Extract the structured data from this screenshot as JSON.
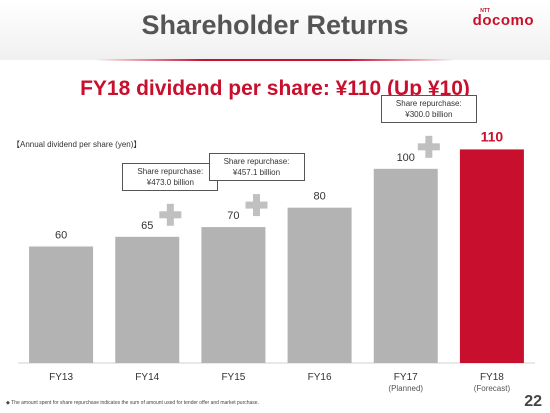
{
  "header": {
    "title": "Shareholder Returns",
    "logo_small": "NTT",
    "logo": "docomo",
    "page_number": "22"
  },
  "headline": "FY18 dividend per share: ¥110 (Up ¥10)",
  "unit_label": "【Annual dividend per share (yen)】",
  "footnote": "◆ The amount spent for share repurchase indicates the sum of amount used for tender offer and market purchase.",
  "colors": {
    "bar": "#b3b3b3",
    "highlight": "#c8102e",
    "text": "#333333",
    "plus": "#c0c0c0"
  },
  "chart_data": {
    "type": "bar",
    "categories": [
      "FY13",
      "FY14",
      "FY15",
      "FY16",
      "FY17",
      "FY18"
    ],
    "sublabels": [
      "",
      "",
      "",
      "",
      "(Planned)",
      "(Forecast)"
    ],
    "values": [
      60,
      65,
      70,
      80,
      100,
      110
    ],
    "highlight_index": 5,
    "title": "",
    "ylabel": "Annual dividend per share (yen)",
    "ylim": [
      0,
      120
    ],
    "grid": false,
    "share_repurchase": [
      {
        "after_category": "FY14",
        "label": "Share repurchase:",
        "amount": "¥473.0 billion"
      },
      {
        "after_category": "FY15",
        "label": "Share repurchase:",
        "amount": "¥457.1 billion"
      },
      {
        "after_category": "FY17",
        "label": "Share repurchase:",
        "amount": "¥300.0 billion"
      }
    ]
  }
}
